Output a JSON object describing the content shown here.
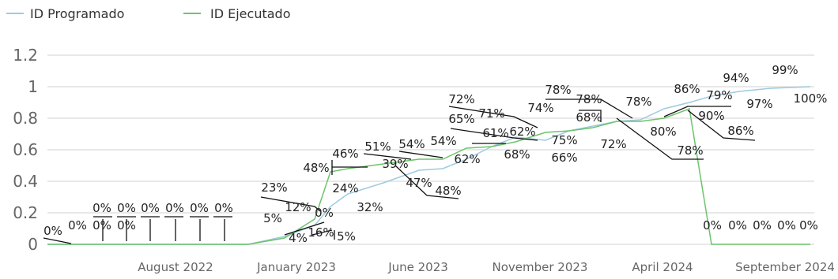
{
  "chart_data": {
    "type": "line",
    "title": "",
    "xlabel": "",
    "ylabel": "",
    "ylim": [
      0,
      1.2
    ],
    "yticks": [
      "0",
      "0.2",
      "0.4",
      "0.6",
      "0.8",
      "1",
      "1.2"
    ],
    "xticks": [
      "August 2022",
      "January 2023",
      "June 2023",
      "November 2023",
      "April 2024",
      "September 2024"
    ],
    "grid": true,
    "legend": "top-left",
    "colors": {
      "planned": "#9ecae1",
      "executed": "#6cc46c"
    },
    "series": [
      {
        "name": "ID Programado",
        "values": [
          0,
          0,
          0,
          0,
          0,
          0,
          0,
          0,
          0,
          0.05,
          0.12,
          0.24,
          0.32,
          0.39,
          0.47,
          0.48,
          0.54,
          0.62,
          0.68,
          0.66,
          0.72,
          0.75,
          0.78,
          0.79,
          0.86,
          0.9,
          0.94,
          0.97,
          0.99,
          1.0
        ]
      },
      {
        "name": "ID Ejecutado",
        "values": [
          0,
          0,
          0,
          0,
          0,
          0,
          0,
          0,
          0,
          0.04,
          0.16,
          0.46,
          0.48,
          0.51,
          0.54,
          0.54,
          0.61,
          0.62,
          0.65,
          0.71,
          0.72,
          0.74,
          0.78,
          0.78,
          0.8,
          0.86,
          0,
          0,
          0,
          0
        ]
      }
    ],
    "data_labels": [
      "0%",
      "0%",
      "0%",
      "0%",
      "0%",
      "0%",
      "0%",
      "0%",
      "0%",
      "0%",
      "5%",
      "4%",
      "16%",
      "5%",
      "12%",
      "0%",
      "23%",
      "24%",
      "32%",
      "48%",
      "46%",
      "51%",
      "39%",
      "47%",
      "48%",
      "54%",
      "54%",
      "62%",
      "61%",
      "62%",
      "68%",
      "72%",
      "65%",
      "71%",
      "74%",
      "75%",
      "66%",
      "78%",
      "78%",
      "68%",
      "72%",
      "78%",
      "80%",
      "78%",
      "86%",
      "79%",
      "90%",
      "86%",
      "94%",
      "97%",
      "99%",
      "100%",
      "0%",
      "0%",
      "0%",
      "0%",
      "0%"
    ]
  }
}
